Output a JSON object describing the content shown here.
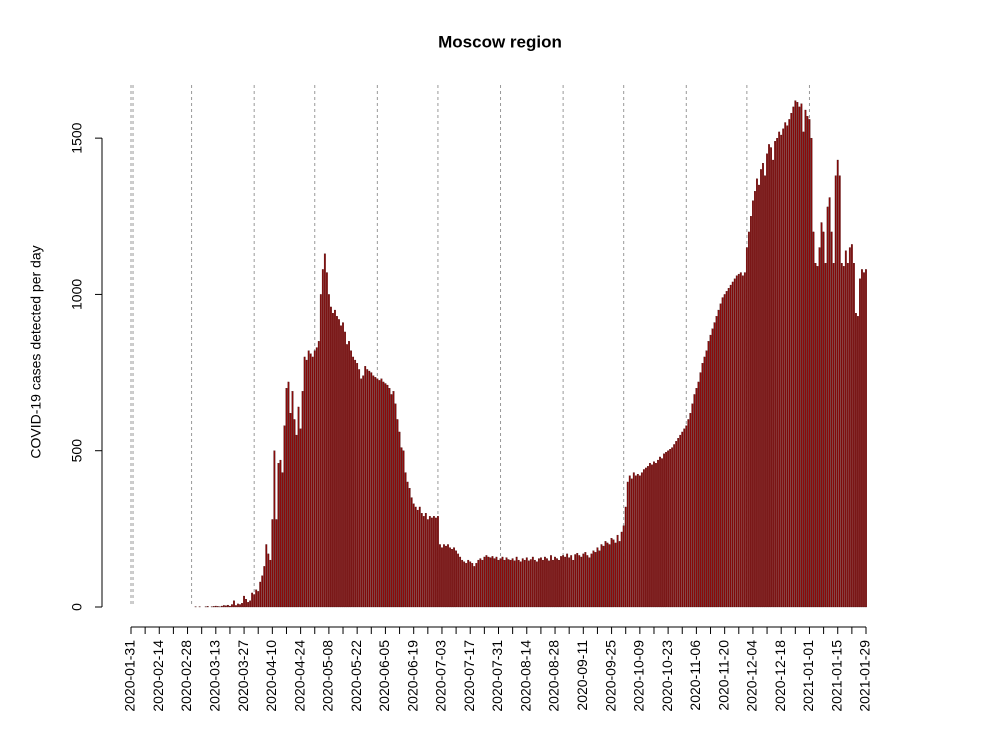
{
  "chart_data": {
    "type": "bar",
    "title": "Moscow region",
    "y_label": "COVID-19 cases detected per day",
    "color": "#8b0a0a",
    "ylim": [
      -64,
      1670
    ],
    "yticks": [
      0,
      500,
      1000,
      1500
    ],
    "categories": [
      "2020-01-31",
      null,
      null,
      null,
      null,
      null,
      null,
      null,
      null,
      null,
      null,
      null,
      null,
      null,
      "2020-02-14",
      null,
      null,
      null,
      null,
      null,
      null,
      null,
      null,
      null,
      null,
      null,
      null,
      null,
      "2020-02-28",
      null,
      null,
      null,
      null,
      null,
      null,
      null,
      null,
      null,
      null,
      null,
      null,
      null,
      "2020-03-13",
      null,
      null,
      null,
      null,
      null,
      null,
      null,
      null,
      null,
      null,
      null,
      null,
      null,
      "2020-03-27",
      null,
      null,
      null,
      null,
      null,
      null,
      null,
      null,
      null,
      null,
      null,
      null,
      null,
      "2020-04-10",
      null,
      null,
      null,
      null,
      null,
      null,
      null,
      null,
      null,
      null,
      null,
      null,
      null,
      "2020-04-24",
      null,
      null,
      null,
      null,
      null,
      null,
      null,
      null,
      null,
      null,
      null,
      null,
      null,
      "2020-05-08",
      null,
      null,
      null,
      null,
      null,
      null,
      null,
      null,
      null,
      null,
      null,
      null,
      null,
      "2020-05-22",
      null,
      null,
      null,
      null,
      null,
      null,
      null,
      null,
      null,
      null,
      null,
      null,
      null,
      "2020-06-05",
      null,
      null,
      null,
      null,
      null,
      null,
      null,
      null,
      null,
      null,
      null,
      null,
      null,
      "2020-06-19",
      null,
      null,
      null,
      null,
      null,
      null,
      null,
      null,
      null,
      null,
      null,
      null,
      null,
      "2020-07-03",
      null,
      null,
      null,
      null,
      null,
      null,
      null,
      null,
      null,
      null,
      null,
      null,
      null,
      "2020-07-17",
      null,
      null,
      null,
      null,
      null,
      null,
      null,
      null,
      null,
      null,
      null,
      null,
      null,
      "2020-07-31",
      null,
      null,
      null,
      null,
      null,
      null,
      null,
      null,
      null,
      null,
      null,
      null,
      null,
      "2020-08-14",
      null,
      null,
      null,
      null,
      null,
      null,
      null,
      null,
      null,
      null,
      null,
      null,
      null,
      "2020-08-28",
      null,
      null,
      null,
      null,
      null,
      null,
      null,
      null,
      null,
      null,
      null,
      null,
      null,
      "2020-09-11",
      null,
      null,
      null,
      null,
      null,
      null,
      null,
      null,
      null,
      null,
      null,
      null,
      null,
      "2020-09-25",
      null,
      null,
      null,
      null,
      null,
      null,
      null,
      null,
      null,
      null,
      null,
      null,
      null,
      "2020-10-09",
      null,
      null,
      null,
      null,
      null,
      null,
      null,
      null,
      null,
      null,
      null,
      null,
      null,
      "2020-10-23",
      null,
      null,
      null,
      null,
      null,
      null,
      null,
      null,
      null,
      null,
      null,
      null,
      null,
      "2020-11-06",
      null,
      null,
      null,
      null,
      null,
      null,
      null,
      null,
      null,
      null,
      null,
      null,
      null,
      "2020-11-20",
      null,
      null,
      null,
      null,
      null,
      null,
      null,
      null,
      null,
      null,
      null,
      null,
      null,
      "2020-12-04",
      null,
      null,
      null,
      null,
      null,
      null,
      null,
      null,
      null,
      null,
      null,
      null,
      null,
      "2020-12-18",
      null,
      null,
      null,
      null,
      null,
      null,
      null,
      null,
      null,
      null,
      null,
      null,
      null,
      "2021-01-01",
      null,
      null,
      null,
      null,
      null,
      null,
      null,
      null,
      null,
      null,
      null,
      null,
      null,
      "2021-01-15",
      null,
      null,
      null,
      null,
      null,
      null,
      null,
      null,
      null,
      null,
      null,
      null,
      null,
      "2021-01-29"
    ],
    "values": [
      0,
      0,
      0,
      0,
      0,
      0,
      0,
      0,
      0,
      0,
      0,
      0,
      0,
      0,
      0,
      0,
      0,
      0,
      0,
      0,
      0,
      0,
      0,
      0,
      0,
      0,
      0,
      0,
      0,
      0,
      0,
      0,
      1,
      0,
      1,
      0,
      0,
      1,
      2,
      0,
      1,
      2,
      3,
      2,
      1,
      3,
      5,
      4,
      6,
      3,
      8,
      20,
      5,
      10,
      8,
      12,
      35,
      25,
      15,
      20,
      45,
      40,
      55,
      50,
      80,
      100,
      130,
      200,
      170,
      150,
      280,
      500,
      280,
      460,
      470,
      430,
      580,
      700,
      720,
      620,
      690,
      600,
      550,
      640,
      570,
      690,
      800,
      790,
      820,
      810,
      800,
      820,
      830,
      850,
      1000,
      1080,
      1130,
      1070,
      1000,
      960,
      940,
      950,
      930,
      920,
      900,
      910,
      880,
      840,
      850,
      820,
      800,
      790,
      780,
      760,
      730,
      740,
      770,
      760,
      755,
      750,
      740,
      735,
      730,
      725,
      730,
      720,
      715,
      710,
      700,
      680,
      690,
      650,
      600,
      560,
      510,
      500,
      430,
      400,
      380,
      350,
      330,
      320,
      310,
      320,
      300,
      290,
      300,
      280,
      290,
      285,
      290,
      285,
      290,
      200,
      190,
      200,
      195,
      200,
      190,
      185,
      190,
      180,
      170,
      160,
      150,
      145,
      140,
      150,
      145,
      140,
      130,
      140,
      150,
      155,
      150,
      160,
      165,
      160,
      158,
      162,
      155,
      160,
      150,
      155,
      160,
      150,
      158,
      152,
      150,
      155,
      148,
      160,
      150,
      145,
      155,
      150,
      158,
      148,
      152,
      160,
      150,
      145,
      155,
      158,
      150,
      160,
      155,
      148,
      165,
      150,
      160,
      155,
      150,
      162,
      165,
      160,
      170,
      158,
      165,
      150,
      168,
      172,
      165,
      160,
      170,
      175,
      165,
      158,
      170,
      180,
      175,
      190,
      180,
      200,
      195,
      210,
      205,
      200,
      220,
      215,
      205,
      230,
      210,
      240,
      260,
      320,
      400,
      420,
      410,
      430,
      420,
      425,
      420,
      430,
      440,
      445,
      450,
      460,
      455,
      465,
      460,
      470,
      480,
      475,
      490,
      495,
      500,
      505,
      510,
      520,
      530,
      540,
      550,
      560,
      570,
      580,
      600,
      620,
      650,
      680,
      700,
      720,
      750,
      780,
      800,
      820,
      850,
      870,
      890,
      910,
      930,
      950,
      970,
      990,
      1000,
      1010,
      1020,
      1030,
      1040,
      1050,
      1060,
      1065,
      1070,
      1060,
      1070,
      1150,
      1200,
      1250,
      1300,
      1330,
      1370,
      1350,
      1400,
      1420,
      1380,
      1450,
      1480,
      1470,
      1430,
      1490,
      1500,
      1520,
      1510,
      1530,
      1550,
      1540,
      1560,
      1580,
      1600,
      1620,
      1615,
      1600,
      1610,
      1520,
      1590,
      1570,
      1560,
      1500,
      1200,
      1100,
      1090,
      1150,
      1230,
      1200,
      1100,
      1280,
      1310,
      1200,
      1100,
      1380,
      1430,
      1380,
      1100,
      1090,
      1140,
      1100,
      1150,
      1160,
      1100,
      940,
      930,
      1050,
      1080,
      1070,
      1080
    ]
  }
}
